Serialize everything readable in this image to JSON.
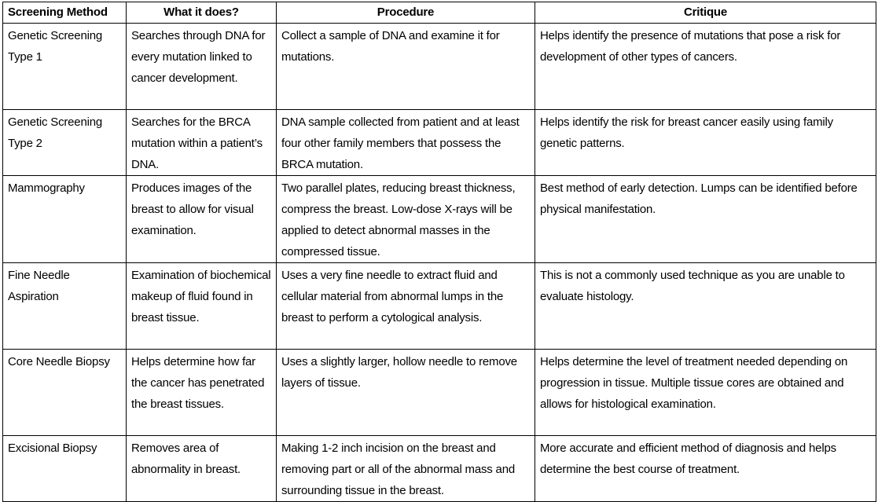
{
  "table": {
    "columns": [
      "Screening Method",
      "What it does?",
      "Procedure",
      "Critique"
    ],
    "rows": [
      [
        "Genetic Screening Type 1",
        "Searches through DNA for every mutation linked to cancer development.",
        "Collect a sample of DNA and examine it for mutations.",
        "Helps identify the presence of mutations that pose a risk for development of other types of cancers."
      ],
      [
        "Genetic Screening Type 2",
        "Searches for the BRCA mutation within a patient’s DNA.",
        "DNA sample collected from patient and at least four other family members that possess the BRCA mutation.",
        "Helps identify the risk for breast cancer easily using family genetic patterns."
      ],
      [
        "Mammography",
        "Produces images of the breast to allow for visual examination.",
        "Two parallel plates, reducing breast thickness, compress the breast. Low-dose X-rays will be applied to detect abnormal masses in the compressed tissue.",
        "Best method of early detection. Lumps can be identified before physical manifestation."
      ],
      [
        "Fine Needle Aspiration",
        "Examination of biochemical makeup of fluid found in breast tissue.",
        "Uses a very fine needle to extract fluid and cellular material from abnormal lumps in the breast to perform a cytological analysis.",
        "This is not a commonly used technique as you are unable to evaluate histology."
      ],
      [
        "Core Needle Biopsy",
        "Helps determine how far the cancer has penetrated the breast tissues.",
        "Uses a slightly larger, hollow needle to remove layers of tissue.",
        "Helps determine the level of treatment needed depending on progression in tissue. Multiple tissue cores are obtained and allows for histological examination."
      ],
      [
        "Excisional Biopsy",
        "Removes area of abnormality in breast.",
        "Making 1-2 inch incision on the breast and removing part or all of the abnormal mass and surrounding tissue in the breast.",
        "More accurate and efficient method of diagnosis and helps determine the best course of treatment."
      ]
    ]
  }
}
